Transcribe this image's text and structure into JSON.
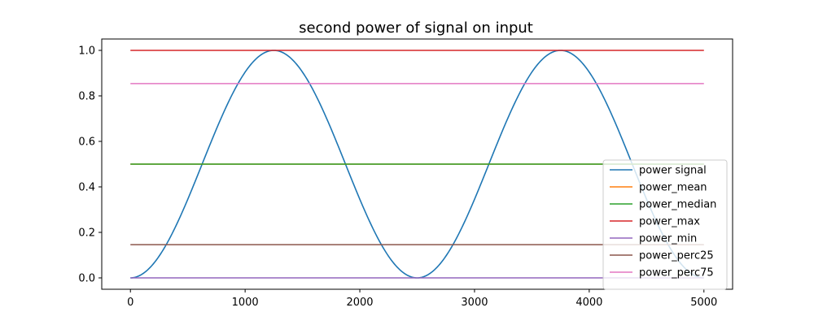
{
  "chart_data": {
    "type": "line",
    "title": "second power of signal on input",
    "xlabel": "",
    "ylabel": "",
    "xlim": [
      -250,
      5250
    ],
    "ylim": [
      -0.05,
      1.05
    ],
    "x_ticks": [
      0,
      1000,
      2000,
      3000,
      4000,
      5000
    ],
    "x_tick_labels": [
      "0",
      "1000",
      "2000",
      "3000",
      "4000",
      "5000"
    ],
    "y_ticks": [
      0.0,
      0.2,
      0.4,
      0.6,
      0.8,
      1.0
    ],
    "y_tick_labels": [
      "0.0",
      "0.2",
      "0.4",
      "0.6",
      "0.8",
      "1.0"
    ],
    "grid": false,
    "legend_position": "lower-right",
    "series": [
      {
        "name": "power signal",
        "color": "#1f77b4",
        "x": [
          0,
          250,
          500,
          750,
          1000,
          1250,
          1500,
          1750,
          2000,
          2250,
          2500,
          2750,
          3000,
          3250,
          3500,
          3750,
          4000,
          4250,
          4500,
          4750,
          5000
        ],
        "y": [
          0.0,
          0.095,
          0.345,
          0.655,
          0.905,
          1.0,
          0.905,
          0.655,
          0.345,
          0.095,
          0.0,
          0.095,
          0.345,
          0.655,
          0.905,
          1.0,
          0.905,
          0.655,
          0.345,
          0.095,
          0.0
        ]
      },
      {
        "name": "power_mean",
        "color": "#ff7f0e",
        "x": [
          0,
          5000
        ],
        "y": [
          0.5,
          0.5
        ]
      },
      {
        "name": "power_median",
        "color": "#2ca02c",
        "x": [
          0,
          5000
        ],
        "y": [
          0.5,
          0.5
        ]
      },
      {
        "name": "power_max",
        "color": "#d62728",
        "x": [
          0,
          5000
        ],
        "y": [
          1.0,
          1.0
        ]
      },
      {
        "name": "power_min",
        "color": "#9467bd",
        "x": [
          0,
          5000
        ],
        "y": [
          0.0,
          0.0
        ]
      },
      {
        "name": "power_perc25",
        "color": "#8c564b",
        "x": [
          0,
          5000
        ],
        "y": [
          0.146,
          0.146
        ]
      },
      {
        "name": "power_perc75",
        "color": "#e377c2",
        "x": [
          0,
          5000
        ],
        "y": [
          0.854,
          0.854
        ]
      }
    ]
  }
}
